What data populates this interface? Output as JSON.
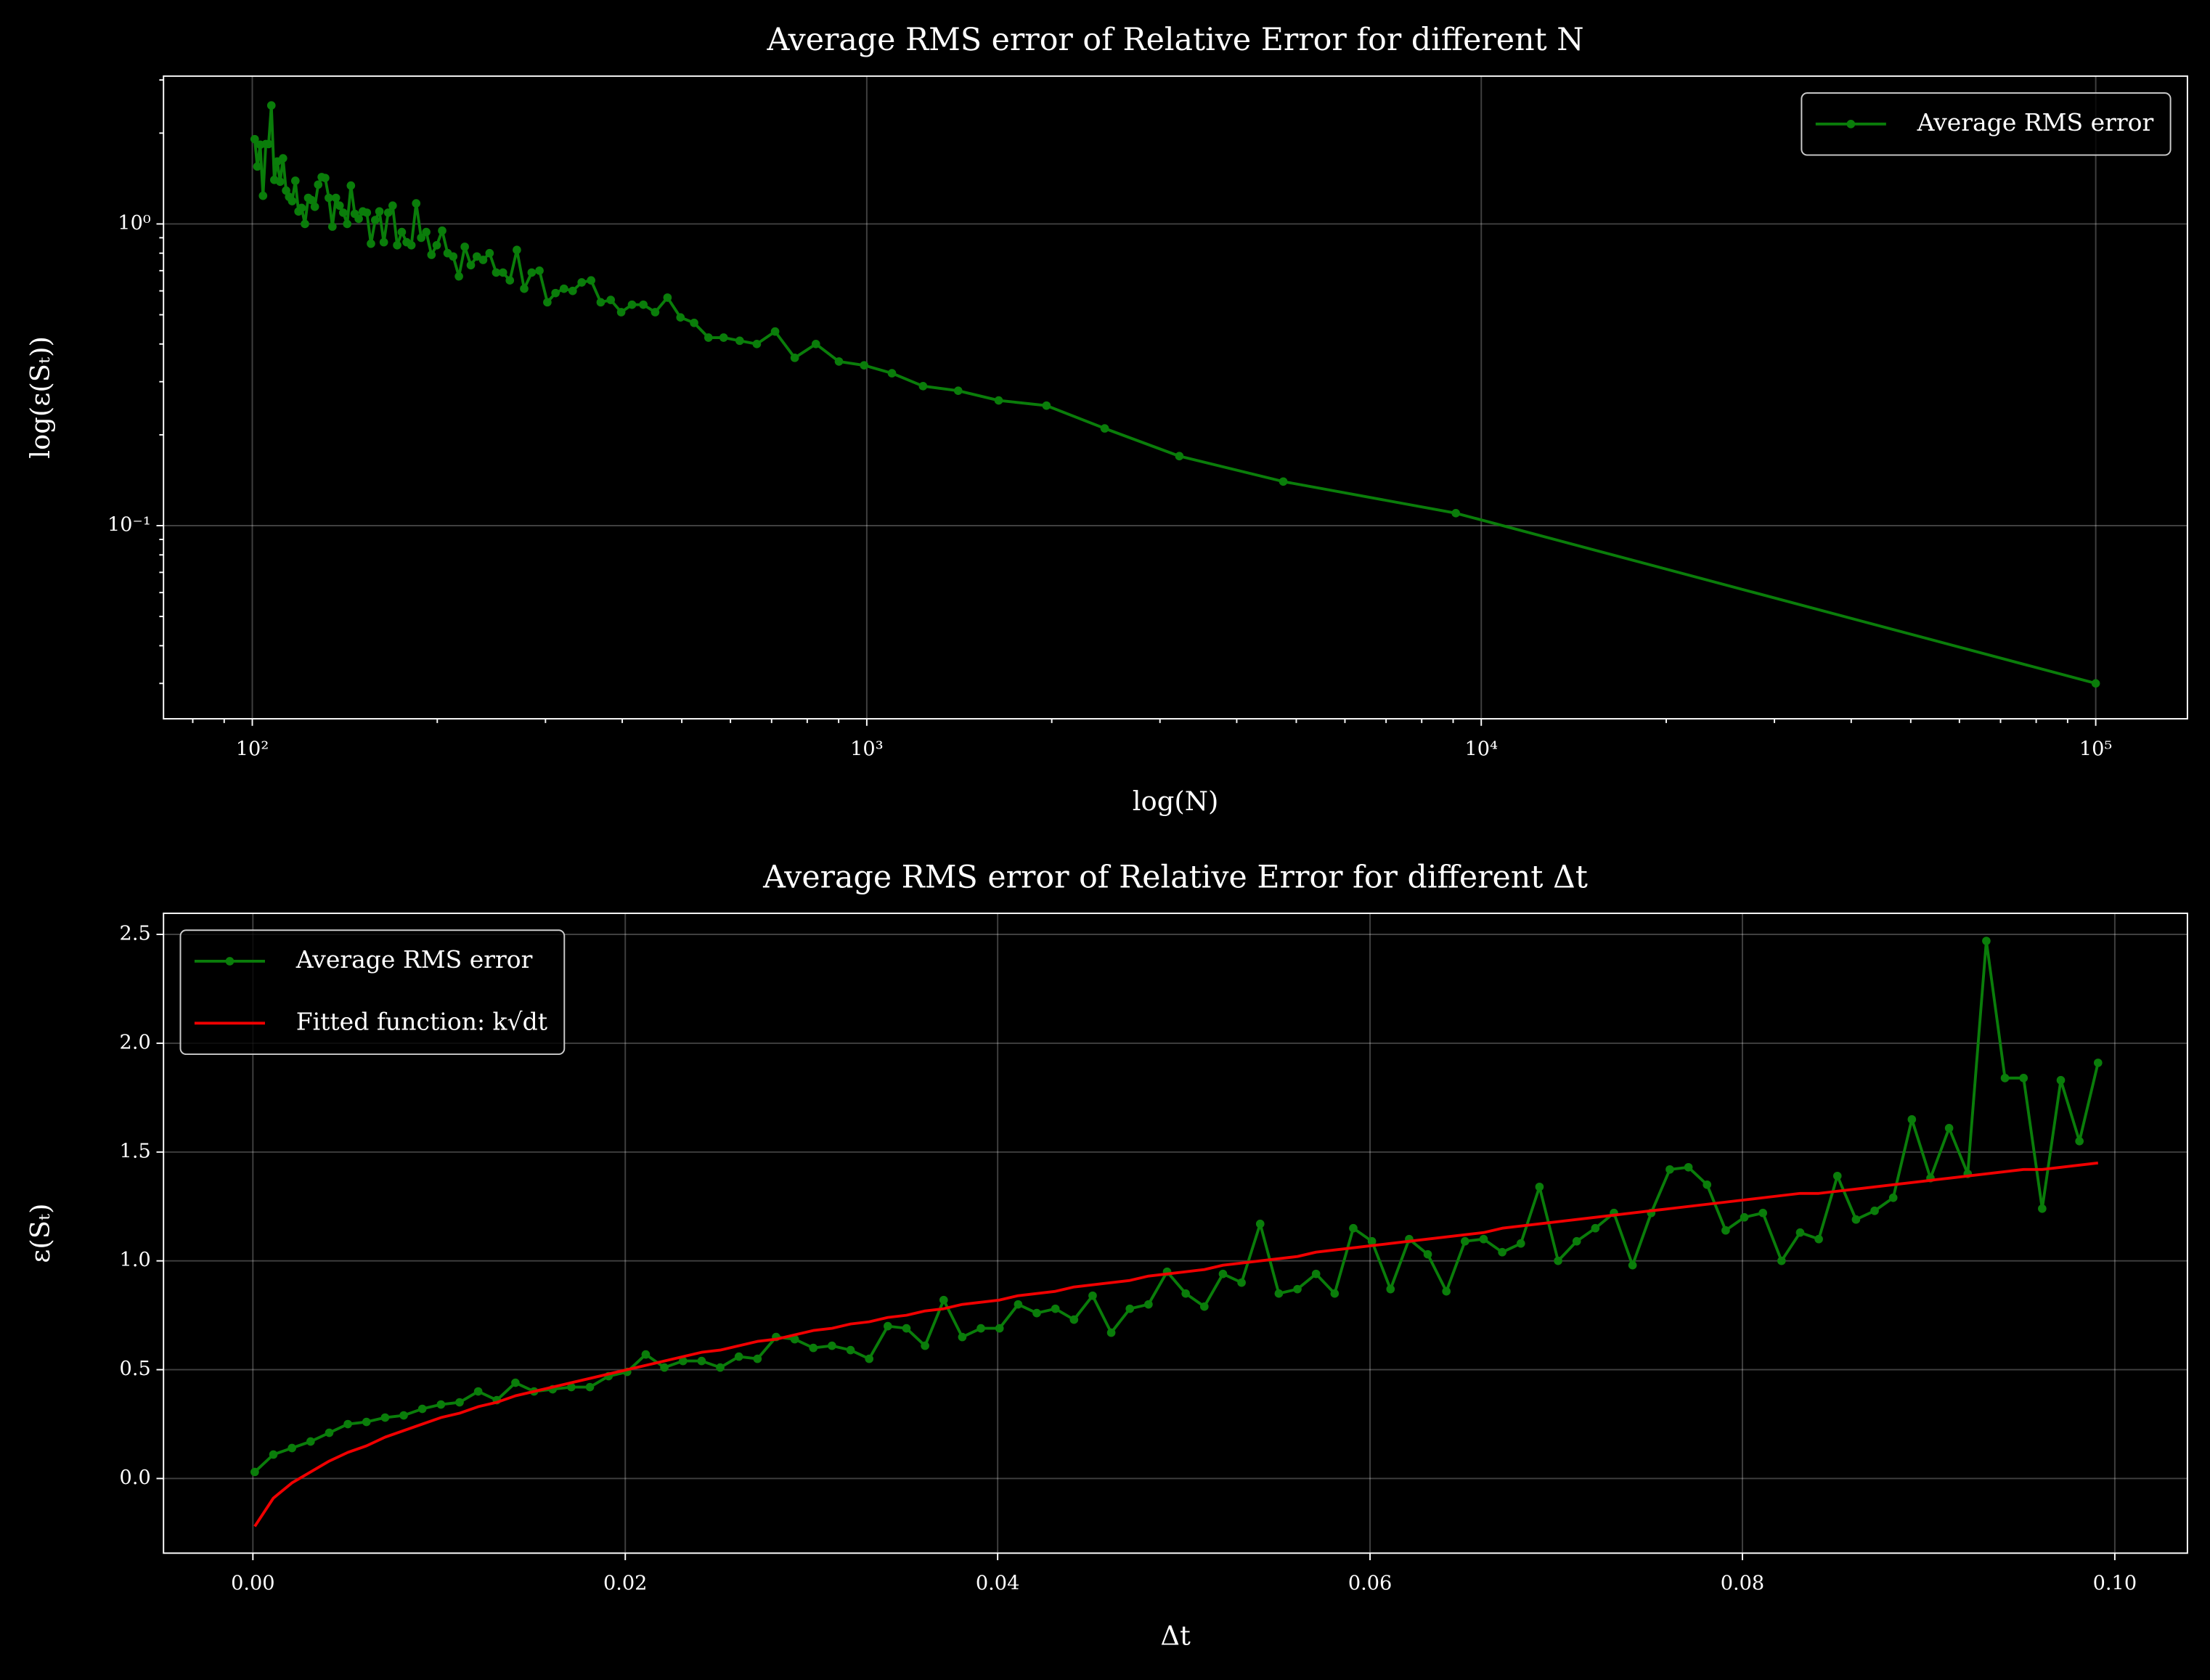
{
  "chart_data": [
    {
      "type": "line",
      "title": "Average RMS error of Relative Error for different N",
      "xlabel": "log(N)",
      "ylabel": "log(ε(Sₜ))",
      "xscale": "log",
      "yscale": "log",
      "xlim": [
        71.7,
        141000
      ],
      "ylim": [
        0.0229,
        3.09
      ],
      "xticks": [
        {
          "value": 100,
          "label": "10²"
        },
        {
          "value": 1000,
          "label": "10³"
        },
        {
          "value": 10000,
          "label": "10⁴"
        },
        {
          "value": 100000,
          "label": "10⁵"
        }
      ],
      "yticks": [
        {
          "value": 0.1,
          "label": "10⁻¹"
        },
        {
          "value": 1,
          "label": "10⁰"
        }
      ],
      "xminorticks": [
        80,
        90,
        200,
        300,
        400,
        500,
        600,
        700,
        800,
        900,
        2000,
        3000,
        4000,
        5000,
        6000,
        7000,
        8000,
        9000,
        20000,
        30000,
        40000,
        50000,
        60000,
        70000,
        80000,
        90000
      ],
      "yminorticks": [
        0.03,
        0.04,
        0.05,
        0.06,
        0.07,
        0.08,
        0.09,
        0.2,
        0.3,
        0.4,
        0.5,
        0.6,
        0.7,
        0.8,
        0.9,
        2,
        3
      ],
      "grid": true,
      "legend": "upper right",
      "x": [
        100.9,
        101.9,
        103.0,
        104.1,
        105.2,
        106.3,
        107.4,
        108.6,
        109.8,
        111.0,
        112.2,
        113.5,
        114.8,
        116.1,
        117.5,
        118.9,
        120.3,
        121.8,
        123.3,
        124.8,
        126.4,
        128.0,
        129.7,
        131.4,
        133.2,
        135.0,
        136.8,
        138.7,
        140.6,
        142.7,
        144.7,
        146.8,
        149.0,
        151.3,
        153.6,
        156.0,
        158.5,
        161.0,
        163.7,
        166.4,
        169.2,
        172.1,
        175.1,
        178.3,
        181.5,
        184.8,
        188.3,
        191.9,
        195.7,
        199.6,
        203.7,
        207.9,
        212.3,
        216.9,
        221.7,
        226.8,
        232.0,
        237.5,
        243.3,
        249.4,
        255.8,
        262.5,
        269.5,
        277.0,
        284.9,
        293.3,
        302.1,
        311.5,
        321.5,
        332.2,
        343.6,
        355.9,
        369.0,
        383.1,
        398.4,
        414.9,
        432.9,
        452.5,
        473.9,
        497.5,
        523.6,
        552.5,
        584.8,
        621.1,
        662.3,
        709.2,
        763.4,
        826.4,
        900.9,
        990.1,
        1098.9,
        1234.6,
        1408.5,
        1639.3,
        1960.8,
        2439.0,
        3225.8,
        4761.9,
        9090.9,
        100000
      ],
      "series": [
        {
          "name": "Average RMS error",
          "color": "#0a7d0a",
          "marker": "o",
          "values": [
            1.91,
            1.55,
            1.83,
            1.24,
            1.84,
            1.84,
            2.47,
            1.4,
            1.61,
            1.38,
            1.65,
            1.29,
            1.23,
            1.19,
            1.39,
            1.1,
            1.13,
            1.0,
            1.22,
            1.2,
            1.14,
            1.35,
            1.43,
            1.42,
            1.22,
            0.98,
            1.22,
            1.15,
            1.09,
            1.0,
            1.34,
            1.08,
            1.04,
            1.1,
            1.09,
            0.86,
            1.03,
            1.1,
            0.87,
            1.09,
            1.15,
            0.85,
            0.94,
            0.87,
            0.85,
            1.17,
            0.9,
            0.94,
            0.79,
            0.85,
            0.95,
            0.8,
            0.78,
            0.67,
            0.84,
            0.73,
            0.78,
            0.76,
            0.8,
            0.69,
            0.69,
            0.65,
            0.82,
            0.61,
            0.69,
            0.7,
            0.55,
            0.59,
            0.61,
            0.6,
            0.64,
            0.65,
            0.55,
            0.56,
            0.51,
            0.54,
            0.54,
            0.51,
            0.57,
            0.49,
            0.47,
            0.42,
            0.42,
            0.41,
            0.4,
            0.44,
            0.36,
            0.4,
            0.35,
            0.34,
            0.32,
            0.29,
            0.28,
            0.26,
            0.25,
            0.21,
            0.17,
            0.14,
            0.11,
            0.03
          ]
        }
      ]
    },
    {
      "type": "line",
      "title": "Average RMS error of Relative Error for different Δt",
      "xlabel": "Δt",
      "ylabel": "ε(Sₜ)",
      "xscale": "linear",
      "yscale": "linear",
      "xlim": [
        -0.0048,
        0.1039
      ],
      "ylim": [
        -0.343,
        2.597
      ],
      "xticks": [
        {
          "value": 0,
          "label": "0.00"
        },
        0.02,
        0.04,
        0.06,
        0.08,
        {
          "value": 0.1,
          "label": "0.10"
        }
      ],
      "yticks": [
        {
          "value": 0,
          "label": "0.0"
        },
        0.5,
        {
          "value": 1,
          "label": "1.0"
        },
        1.5,
        {
          "value": 2,
          "label": "2.0"
        },
        2.5
      ],
      "grid": true,
      "legend": "upper left",
      "x": [
        0.0001,
        0.0011,
        0.0021,
        0.0031,
        0.0041,
        0.0051,
        0.0061,
        0.0071,
        0.0081,
        0.0091,
        0.0101,
        0.0111,
        0.0121,
        0.0131,
        0.0141,
        0.0151,
        0.0161,
        0.0171,
        0.0181,
        0.0191,
        0.0201,
        0.0211,
        0.0221,
        0.0231,
        0.0241,
        0.0251,
        0.0261,
        0.0271,
        0.0281,
        0.0291,
        0.0301,
        0.0311,
        0.0321,
        0.0331,
        0.0341,
        0.0351,
        0.0361,
        0.0371,
        0.0381,
        0.0391,
        0.0401,
        0.0411,
        0.0421,
        0.0431,
        0.0441,
        0.0451,
        0.0461,
        0.0471,
        0.0481,
        0.0491,
        0.0501,
        0.0511,
        0.0521,
        0.0531,
        0.0541,
        0.0551,
        0.0561,
        0.0571,
        0.0581,
        0.0591,
        0.0601,
        0.0611,
        0.0621,
        0.0631,
        0.0641,
        0.0651,
        0.0661,
        0.0671,
        0.0681,
        0.0691,
        0.0701,
        0.0711,
        0.0721,
        0.0731,
        0.0741,
        0.0751,
        0.0761,
        0.0771,
        0.0781,
        0.0791,
        0.0801,
        0.0811,
        0.0821,
        0.0831,
        0.0841,
        0.0851,
        0.0861,
        0.0871,
        0.0881,
        0.0891,
        0.0901,
        0.0911,
        0.0921,
        0.0931,
        0.0941,
        0.0951,
        0.0961,
        0.0971,
        0.0981,
        0.0991
      ],
      "series": [
        {
          "name": "Average RMS error",
          "color": "#0a7d0a",
          "marker": "o",
          "values": [
            0.03,
            0.11,
            0.14,
            0.17,
            0.21,
            0.25,
            0.26,
            0.28,
            0.29,
            0.32,
            0.34,
            0.35,
            0.4,
            0.36,
            0.44,
            0.4,
            0.41,
            0.42,
            0.42,
            0.47,
            0.49,
            0.57,
            0.51,
            0.54,
            0.54,
            0.51,
            0.56,
            0.55,
            0.65,
            0.64,
            0.6,
            0.61,
            0.59,
            0.55,
            0.7,
            0.69,
            0.61,
            0.82,
            0.65,
            0.69,
            0.69,
            0.8,
            0.76,
            0.78,
            0.73,
            0.84,
            0.67,
            0.78,
            0.8,
            0.95,
            0.85,
            0.79,
            0.94,
            0.9,
            1.17,
            0.85,
            0.87,
            0.94,
            0.85,
            1.15,
            1.09,
            0.87,
            1.1,
            1.03,
            0.86,
            1.09,
            1.1,
            1.04,
            1.08,
            1.34,
            1.0,
            1.09,
            1.15,
            1.22,
            0.98,
            1.22,
            1.42,
            1.43,
            1.35,
            1.14,
            1.2,
            1.22,
            1.0,
            1.13,
            1.1,
            1.39,
            1.19,
            1.23,
            1.29,
            1.65,
            1.38,
            1.61,
            1.4,
            2.47,
            1.84,
            1.84,
            1.24,
            1.83,
            1.55,
            1.91
          ]
        },
        {
          "name": "Fitted function: k√dt",
          "color": "#f00000",
          "marker": null,
          "values": [
            -0.22,
            -0.09,
            -0.02,
            0.03,
            0.08,
            0.12,
            0.15,
            0.19,
            0.22,
            0.25,
            0.28,
            0.3,
            0.33,
            0.35,
            0.38,
            0.4,
            0.42,
            0.44,
            0.46,
            0.48,
            0.5,
            0.52,
            0.54,
            0.56,
            0.58,
            0.59,
            0.61,
            0.63,
            0.64,
            0.66,
            0.68,
            0.69,
            0.71,
            0.72,
            0.74,
            0.75,
            0.77,
            0.78,
            0.8,
            0.81,
            0.82,
            0.84,
            0.85,
            0.86,
            0.88,
            0.89,
            0.9,
            0.91,
            0.93,
            0.94,
            0.95,
            0.96,
            0.98,
            0.99,
            1.0,
            1.01,
            1.02,
            1.04,
            1.05,
            1.06,
            1.07,
            1.08,
            1.09,
            1.1,
            1.11,
            1.12,
            1.13,
            1.15,
            1.16,
            1.17,
            1.18,
            1.19,
            1.2,
            1.21,
            1.22,
            1.23,
            1.24,
            1.25,
            1.26,
            1.27,
            1.28,
            1.29,
            1.3,
            1.31,
            1.31,
            1.32,
            1.33,
            1.34,
            1.35,
            1.36,
            1.37,
            1.38,
            1.39,
            1.4,
            1.41,
            1.42,
            1.42,
            1.43,
            1.44,
            1.45
          ]
        }
      ]
    }
  ]
}
